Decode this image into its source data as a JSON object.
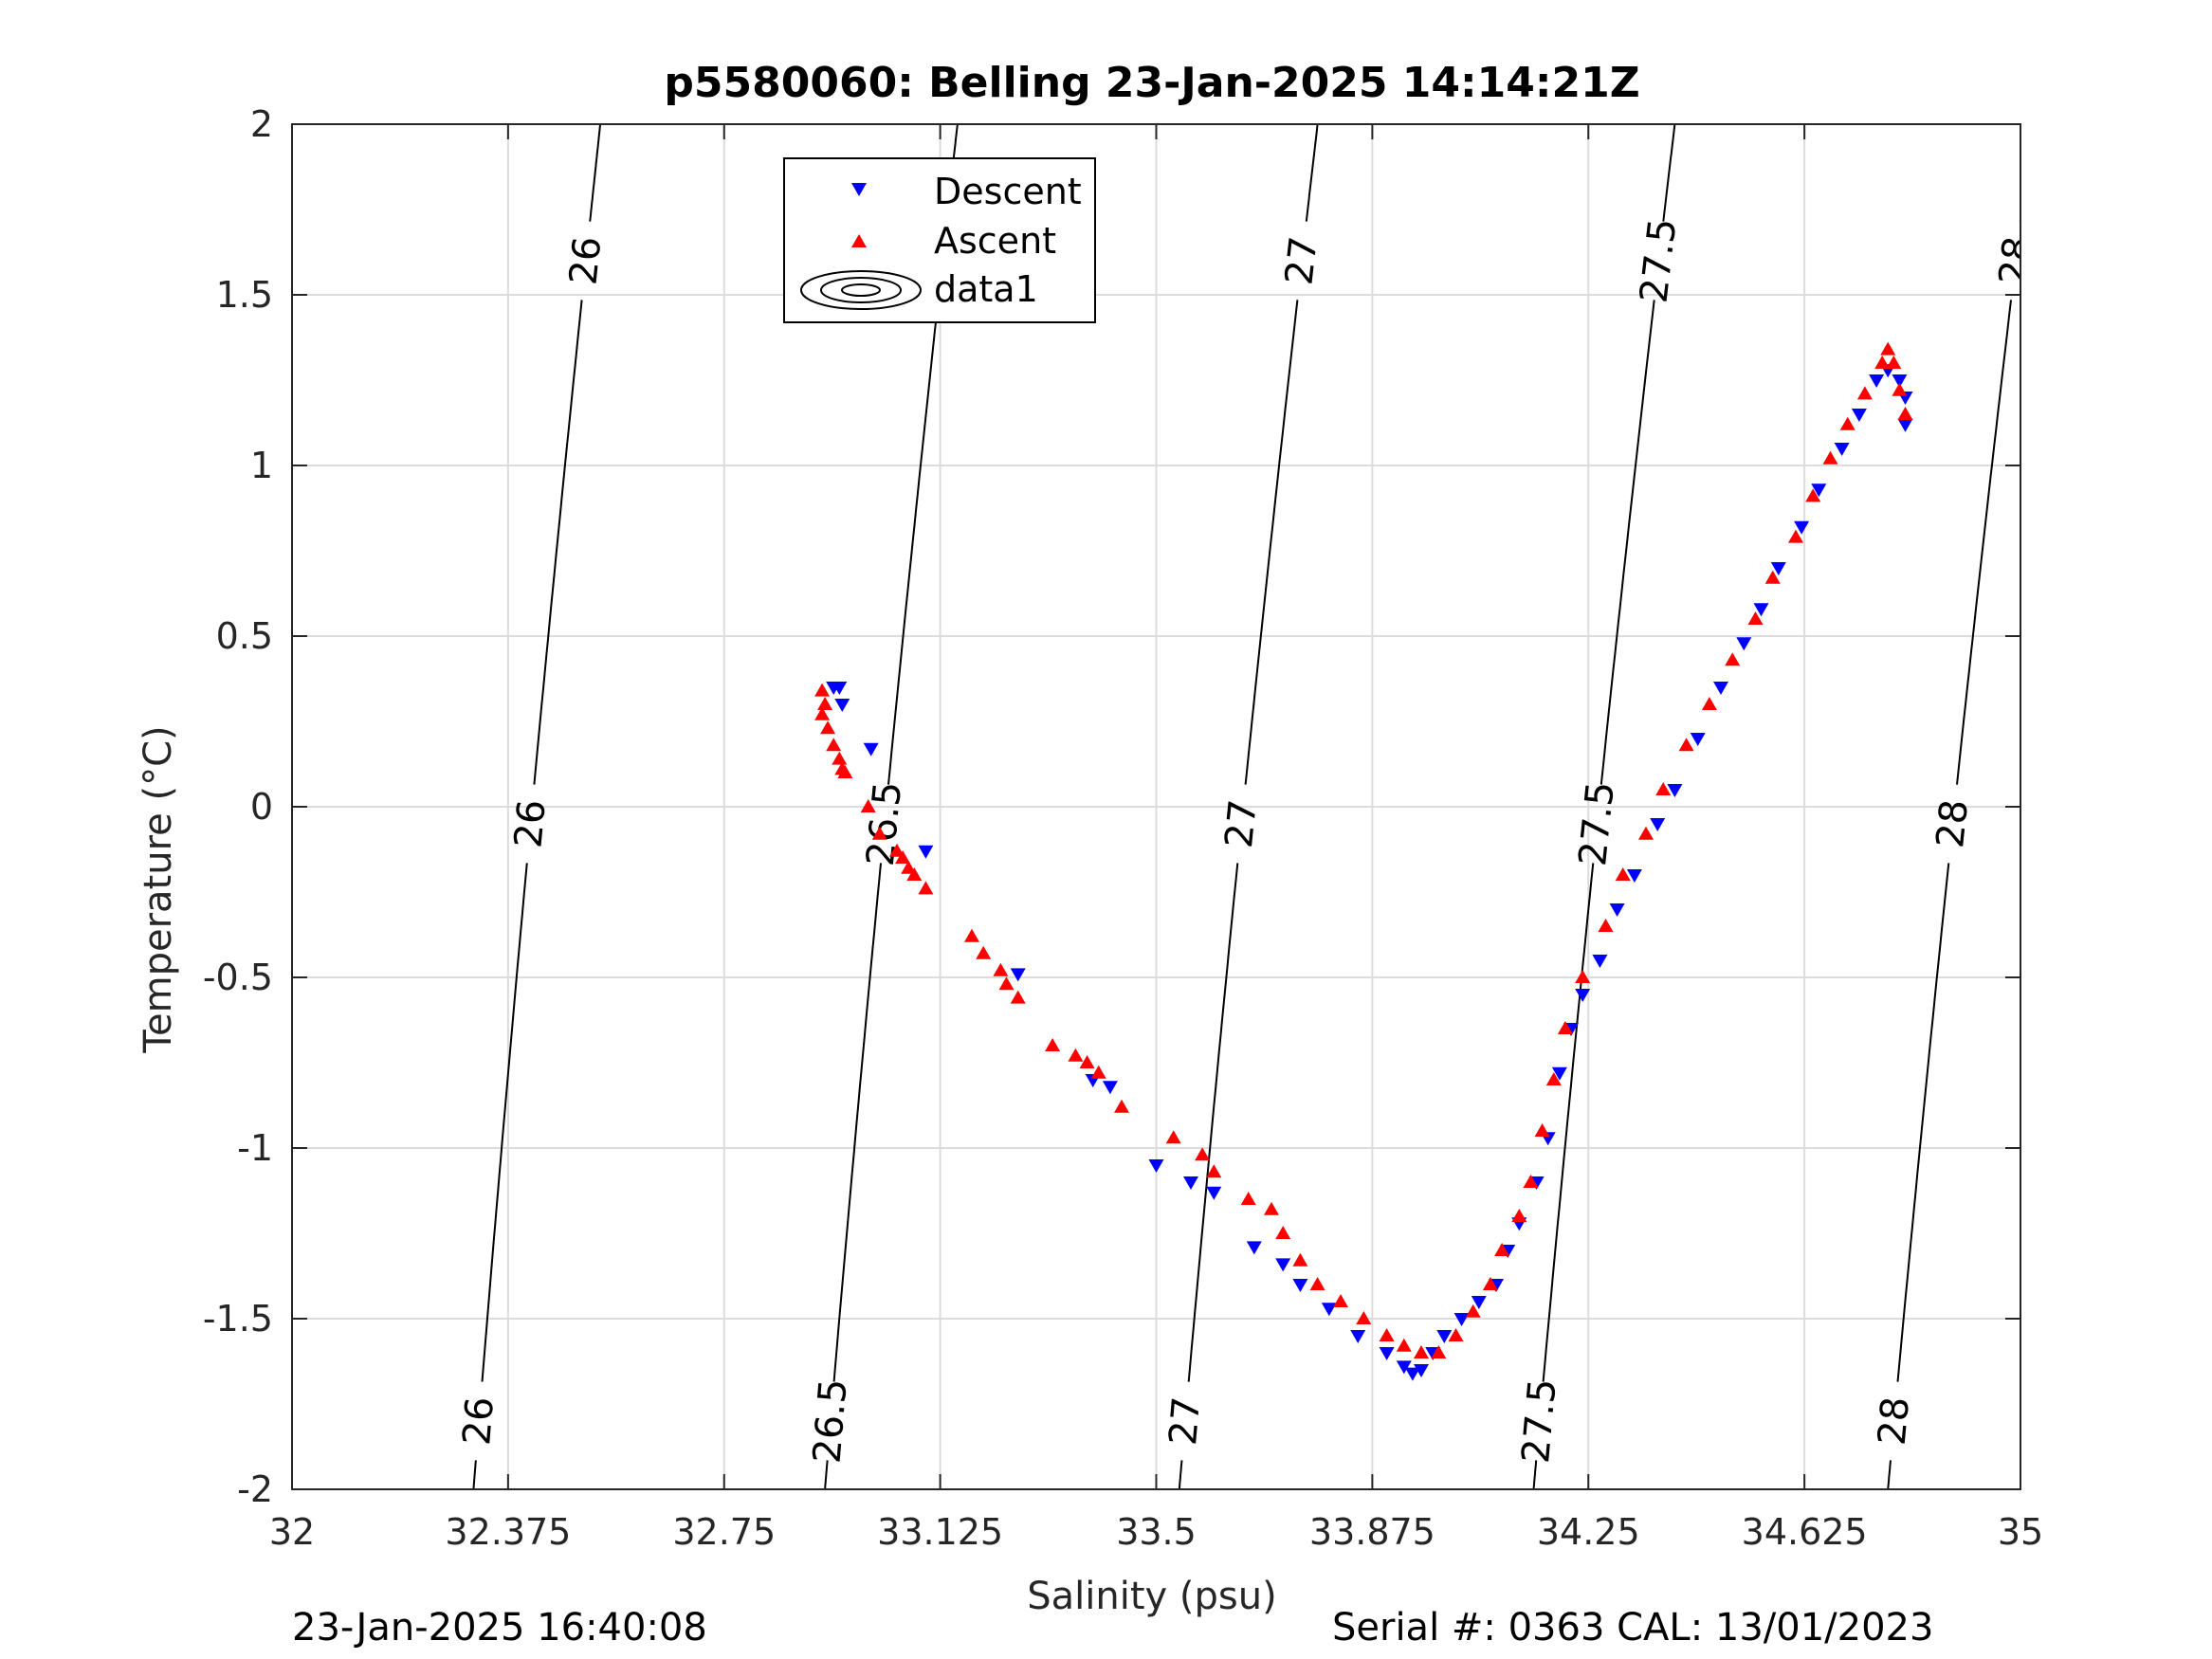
{
  "chart_data": {
    "type": "scatter",
    "title": "p5580060: Belling 23-Jan-2025 14:14:21Z",
    "xlabel": "Salinity (psu)",
    "ylabel": "Temperature (°C)",
    "xlim": [
      32,
      35
    ],
    "ylim": [
      -2,
      2
    ],
    "x_ticks": [
      32,
      32.375,
      32.75,
      33.125,
      33.5,
      33.875,
      34.25,
      34.625,
      35
    ],
    "x_tick_labels": [
      "32",
      "32.375",
      "32.75",
      "33.125",
      "33.5",
      "33.875",
      "34.25",
      "34.625",
      "35"
    ],
    "y_ticks": [
      -2,
      -1.5,
      -1,
      -0.5,
      0,
      0.5,
      1,
      1.5,
      2
    ],
    "y_tick_labels": [
      "-2",
      "-1.5",
      "-1",
      "-0.5",
      "0",
      "0.5",
      "1",
      "1.5",
      "2"
    ],
    "grid": true,
    "legend_position": "top-center",
    "series": [
      {
        "name": "Descent",
        "marker": "triangle-down",
        "color": "#0000ff",
        "points": [
          [
            32.94,
            0.35
          ],
          [
            32.95,
            0.35
          ],
          [
            32.955,
            0.3
          ],
          [
            33.005,
            0.17
          ],
          [
            33.1,
            -0.13
          ],
          [
            33.26,
            -0.49
          ],
          [
            33.39,
            -0.8
          ],
          [
            33.42,
            -0.82
          ],
          [
            33.5,
            -1.05
          ],
          [
            33.56,
            -1.1
          ],
          [
            33.6,
            -1.13
          ],
          [
            33.67,
            -1.29
          ],
          [
            33.72,
            -1.34
          ],
          [
            33.75,
            -1.4
          ],
          [
            33.8,
            -1.47
          ],
          [
            33.85,
            -1.55
          ],
          [
            33.9,
            -1.6
          ],
          [
            33.93,
            -1.64
          ],
          [
            33.945,
            -1.66
          ],
          [
            33.96,
            -1.65
          ],
          [
            33.98,
            -1.6
          ],
          [
            34.0,
            -1.55
          ],
          [
            34.03,
            -1.5
          ],
          [
            34.06,
            -1.45
          ],
          [
            34.09,
            -1.4
          ],
          [
            34.11,
            -1.3
          ],
          [
            34.13,
            -1.22
          ],
          [
            34.16,
            -1.1
          ],
          [
            34.18,
            -0.97
          ],
          [
            34.2,
            -0.78
          ],
          [
            34.22,
            -0.65
          ],
          [
            34.24,
            -0.55
          ],
          [
            34.27,
            -0.45
          ],
          [
            34.3,
            -0.3
          ],
          [
            34.33,
            -0.2
          ],
          [
            34.37,
            -0.05
          ],
          [
            34.4,
            0.05
          ],
          [
            34.44,
            0.2
          ],
          [
            34.48,
            0.35
          ],
          [
            34.52,
            0.48
          ],
          [
            34.55,
            0.58
          ],
          [
            34.58,
            0.7
          ],
          [
            34.62,
            0.82
          ],
          [
            34.65,
            0.93
          ],
          [
            34.69,
            1.05
          ],
          [
            34.72,
            1.15
          ],
          [
            34.75,
            1.25
          ],
          [
            34.77,
            1.28
          ],
          [
            34.79,
            1.25
          ],
          [
            34.8,
            1.2
          ],
          [
            34.8,
            1.12
          ]
        ]
      },
      {
        "name": "Ascent",
        "marker": "triangle-up",
        "color": "#ff0000",
        "points": [
          [
            32.92,
            0.34
          ],
          [
            32.925,
            0.3
          ],
          [
            32.92,
            0.27
          ],
          [
            32.93,
            0.23
          ],
          [
            32.94,
            0.18
          ],
          [
            32.95,
            0.14
          ],
          [
            32.955,
            0.11
          ],
          [
            32.96,
            0.1
          ],
          [
            33.0,
            0.0
          ],
          [
            33.02,
            -0.08
          ],
          [
            33.05,
            -0.13
          ],
          [
            33.06,
            -0.15
          ],
          [
            33.07,
            -0.18
          ],
          [
            33.08,
            -0.2
          ],
          [
            33.1,
            -0.24
          ],
          [
            33.18,
            -0.38
          ],
          [
            33.2,
            -0.43
          ],
          [
            33.23,
            -0.48
          ],
          [
            33.24,
            -0.52
          ],
          [
            33.26,
            -0.56
          ],
          [
            33.32,
            -0.7
          ],
          [
            33.36,
            -0.73
          ],
          [
            33.38,
            -0.75
          ],
          [
            33.4,
            -0.78
          ],
          [
            33.44,
            -0.88
          ],
          [
            33.53,
            -0.97
          ],
          [
            33.58,
            -1.02
          ],
          [
            33.6,
            -1.07
          ],
          [
            33.66,
            -1.15
          ],
          [
            33.7,
            -1.18
          ],
          [
            33.72,
            -1.25
          ],
          [
            33.75,
            -1.33
          ],
          [
            33.78,
            -1.4
          ],
          [
            33.82,
            -1.45
          ],
          [
            33.86,
            -1.5
          ],
          [
            33.9,
            -1.55
          ],
          [
            33.93,
            -1.58
          ],
          [
            33.96,
            -1.6
          ],
          [
            33.99,
            -1.6
          ],
          [
            34.02,
            -1.55
          ],
          [
            34.05,
            -1.48
          ],
          [
            34.08,
            -1.4
          ],
          [
            34.1,
            -1.3
          ],
          [
            34.13,
            -1.2
          ],
          [
            34.15,
            -1.1
          ],
          [
            34.17,
            -0.95
          ],
          [
            34.19,
            -0.8
          ],
          [
            34.21,
            -0.65
          ],
          [
            34.24,
            -0.5
          ],
          [
            34.28,
            -0.35
          ],
          [
            34.31,
            -0.2
          ],
          [
            34.35,
            -0.08
          ],
          [
            34.38,
            0.05
          ],
          [
            34.42,
            0.18
          ],
          [
            34.46,
            0.3
          ],
          [
            34.5,
            0.43
          ],
          [
            34.54,
            0.55
          ],
          [
            34.57,
            0.67
          ],
          [
            34.61,
            0.79
          ],
          [
            34.64,
            0.91
          ],
          [
            34.67,
            1.02
          ],
          [
            34.7,
            1.12
          ],
          [
            34.73,
            1.21
          ],
          [
            34.76,
            1.3
          ],
          [
            34.77,
            1.34
          ],
          [
            34.78,
            1.3
          ],
          [
            34.79,
            1.22
          ],
          [
            34.8,
            1.15
          ]
        ]
      }
    ],
    "legend_extra_entry": "data1",
    "isopycnals": [
      {
        "label": "26",
        "s_at_t_minus2": 32.315,
        "s_at_t_plus2": 32.535
      },
      {
        "label": "26.5",
        "s_at_t_minus2": 32.925,
        "s_at_t_plus2": 33.155
      },
      {
        "label": "27",
        "s_at_t_minus2": 33.54,
        "s_at_t_plus2": 33.78
      },
      {
        "label": "27.5",
        "s_at_t_minus2": 34.155,
        "s_at_t_plus2": 34.4
      },
      {
        "label": "28",
        "s_at_t_minus2": 34.77,
        "s_at_t_plus2": 35.02
      }
    ],
    "isopycnal_label_temps": [
      -1.8,
      -0.05,
      1.6
    ]
  },
  "footer": {
    "timestamp": "23-Jan-2025 16:40:08",
    "serial": "Serial #: 0363  CAL: 13/01/2023"
  }
}
